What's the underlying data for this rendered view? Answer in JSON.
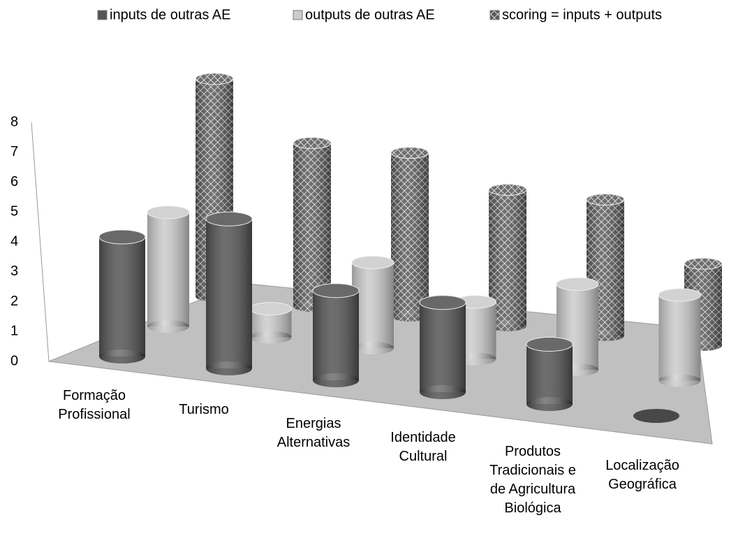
{
  "chart_data": {
    "type": "bar3d",
    "categories": [
      "Formação Profissional",
      "Turismo",
      "Energias Alternativas",
      "Identidade Cultural",
      "Produtos Tradicionais e de Agricultura Biológica",
      "Localização Geográfica"
    ],
    "series": [
      {
        "name": "inputs de outras AE",
        "color": "#555555",
        "values": [
          4,
          5,
          3,
          3,
          2,
          0
        ]
      },
      {
        "name": "outputs de outras AE",
        "color": "#cccccc",
        "values": [
          4,
          1,
          3,
          2,
          3,
          3
        ]
      },
      {
        "name": "scoring = inputs + outputs",
        "color": "#666666",
        "pattern": "crosshatch",
        "values": [
          8,
          6,
          6,
          5,
          5,
          3
        ]
      }
    ],
    "ylim": [
      0,
      8
    ],
    "yticks": [
      0,
      1,
      2,
      3,
      4,
      5,
      6,
      7,
      8
    ],
    "legend": "top"
  }
}
